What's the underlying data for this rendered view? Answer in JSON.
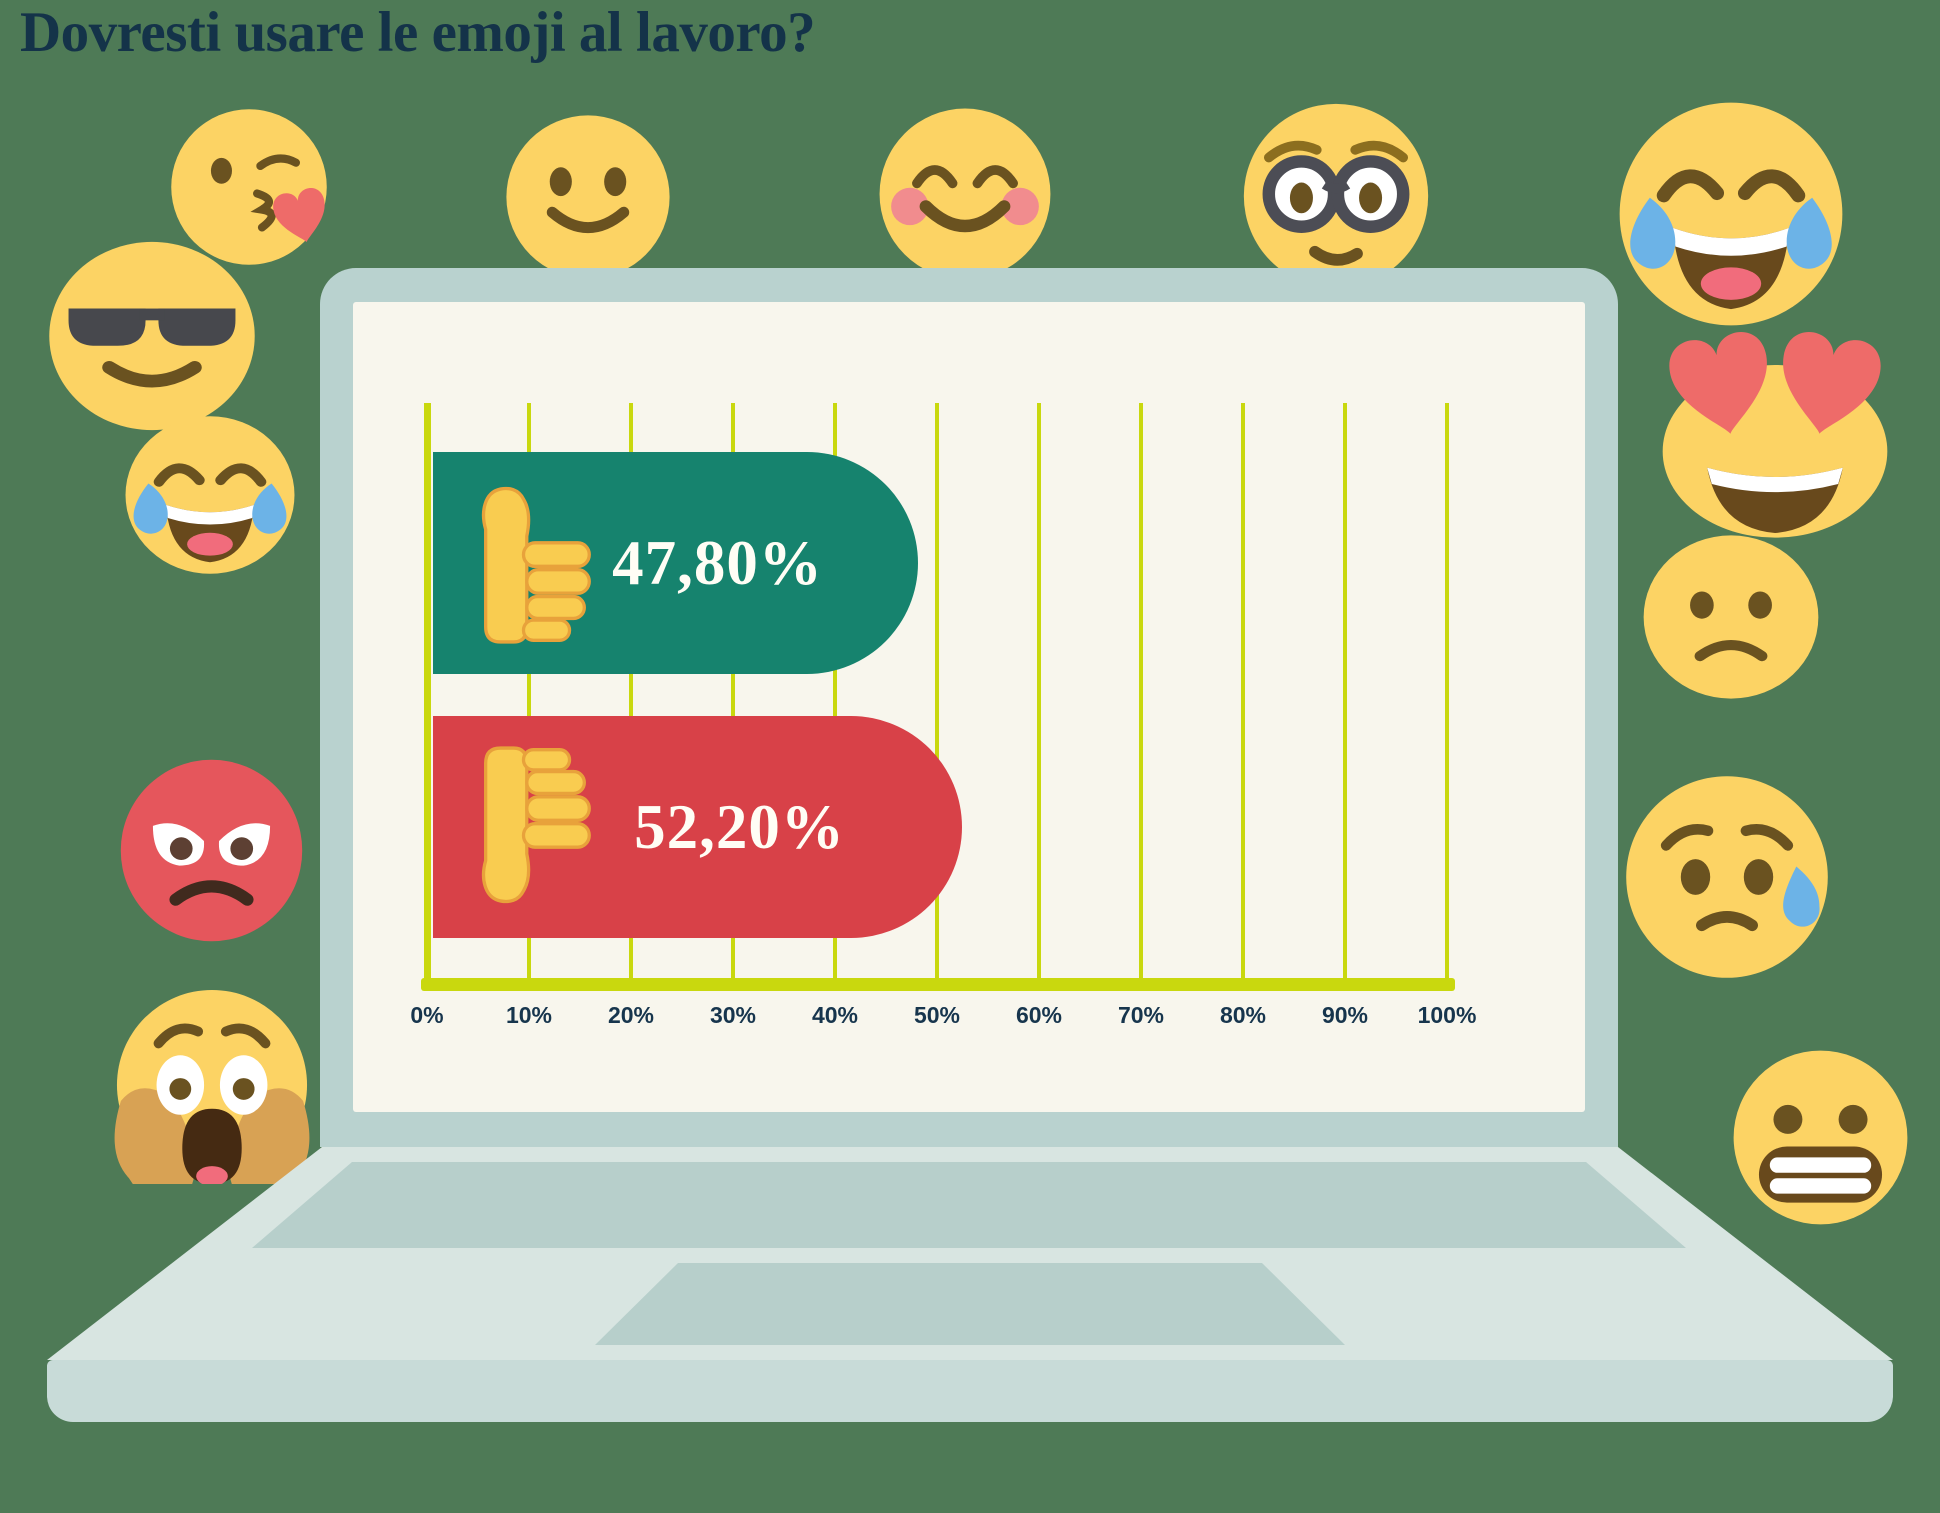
{
  "title": "Dovresti usare le emoji al lavoro?",
  "chart_data": {
    "type": "bar",
    "orientation": "horizontal",
    "title": "Dovresti usare le emoji al lavoro?",
    "categories": [
      "thumbs-up",
      "thumbs-down"
    ],
    "values": [
      47.8,
      52.2
    ],
    "value_labels": [
      "47,80%",
      "52,20%"
    ],
    "series": [
      {
        "name": "thumbs-up",
        "value": 47.8,
        "label": "47,80%",
        "color": "#16836E",
        "icon": "thumbs-up-icon"
      },
      {
        "name": "thumbs-down",
        "value": 52.2,
        "label": "52,20%",
        "color": "#D84148",
        "icon": "thumbs-down-icon"
      }
    ],
    "x_ticks": [
      "0%",
      "10%",
      "20%",
      "30%",
      "40%",
      "50%",
      "60%",
      "70%",
      "80%",
      "90%",
      "100%"
    ],
    "xlim": [
      0,
      100
    ],
    "grid": "vertical",
    "legend": "none",
    "axis_color": "#C9D80E",
    "tick_label_color": "#17354D",
    "plot_background": "#F8F6ED"
  },
  "colors": {
    "background": "#4E7A56",
    "title_text": "#143349",
    "laptop_bezel": "#B9D2CF",
    "laptop_deck": "#D8E5E1",
    "laptop_keyboard": "#B7CFCB",
    "laptop_slab": "#C8DBD8",
    "screen": "#F8F6ED",
    "grid_yellow": "#C9D80E",
    "bar_green": "#16836E",
    "bar_red": "#D84148",
    "emoji_yellow": "#FCD364"
  },
  "emojis": {
    "top_row": [
      "slightly-smiling-face",
      "smiling-face-blushing",
      "nerd-face-glasses",
      "face-with-tears-of-joy"
    ],
    "left_column": [
      "face-blowing-kiss",
      "smiling-face-sunglasses",
      "face-with-tears-of-joy",
      "angry-red-face",
      "face-screaming-in-fear"
    ],
    "right_column": [
      "smiling-face-heart-eyes",
      "slightly-frowning-face",
      "worried-face-with-sweat",
      "grimacing-face"
    ]
  }
}
